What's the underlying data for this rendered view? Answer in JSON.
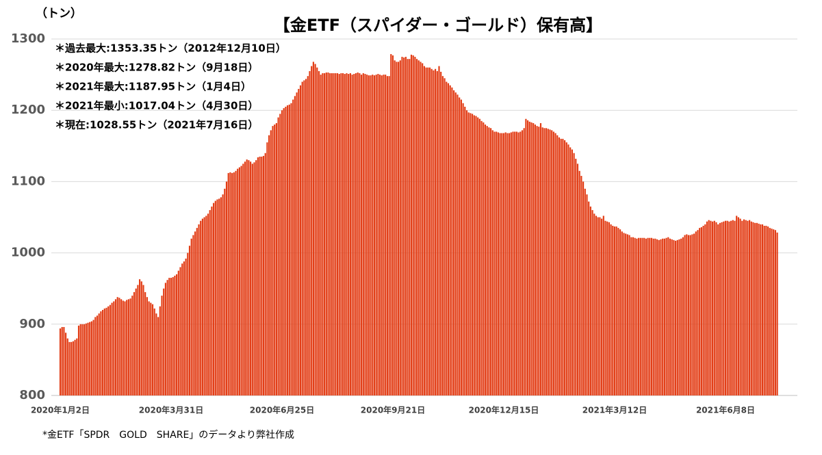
{
  "chart_data": {
    "type": "bar",
    "title": "【金ETF（スパイダー・ゴールド）保有高】",
    "unit_label": "（トン）",
    "annotations": [
      "＊過去最大:1353.35トン（2012年12月10日）",
      "＊2020年最大:1278.82トン（9月18日）",
      "＊2021年最大:1187.95トン（1月4日）",
      "＊2021年最小:1017.04トン（4月30日）",
      "＊現在:1028.55トン（2021年7月16日）"
    ],
    "footnote": "*金ETF「SPDR　GOLD　SHARE」のデータより弊社作成",
    "color": "#e23c14",
    "grid": true,
    "ylim": [
      800,
      1300
    ],
    "yticks": [
      800,
      900,
      1000,
      1100,
      1200,
      1300
    ],
    "categories": [
      "2020年1月2日",
      null,
      null,
      null,
      null,
      null,
      null,
      null,
      null,
      null,
      null,
      null,
      null,
      null,
      null,
      null,
      null,
      null,
      null,
      null,
      null,
      null,
      null,
      null,
      null,
      null,
      null,
      null,
      null,
      null,
      null,
      null,
      null,
      null,
      null,
      null,
      null,
      null,
      null,
      null,
      null,
      null,
      null,
      null,
      null,
      null,
      null,
      null,
      null,
      null,
      null,
      null,
      null,
      null,
      null,
      null,
      null,
      null,
      null,
      null,
      "2020年3月31日",
      null,
      null,
      null,
      null,
      null,
      null,
      null,
      null,
      null,
      null,
      null,
      null,
      null,
      null,
      null,
      null,
      null,
      null,
      null,
      null,
      null,
      null,
      null,
      null,
      null,
      null,
      null,
      null,
      null,
      null,
      null,
      null,
      null,
      null,
      null,
      null,
      null,
      null,
      null,
      null,
      null,
      null,
      null,
      null,
      null,
      null,
      null,
      null,
      null,
      null,
      null,
      null,
      null,
      null,
      null,
      null,
      null,
      null,
      null,
      "2020年6月25日",
      null,
      null,
      null,
      null,
      null,
      null,
      null,
      null,
      null,
      null,
      null,
      null,
      null,
      null,
      null,
      null,
      null,
      null,
      null,
      null,
      null,
      null,
      null,
      null,
      null,
      null,
      null,
      null,
      null,
      null,
      null,
      null,
      null,
      null,
      null,
      null,
      null,
      null,
      null,
      null,
      null,
      null,
      null,
      null,
      null,
      null,
      null,
      null,
      null,
      null,
      null,
      null,
      null,
      null,
      null,
      null,
      null,
      null,
      null,
      "2020年9月21日",
      null,
      null,
      null,
      null,
      null,
      null,
      null,
      null,
      null,
      null,
      null,
      null,
      null,
      null,
      null,
      null,
      null,
      null,
      null,
      null,
      null,
      null,
      null,
      null,
      null,
      null,
      null,
      null,
      null,
      null,
      null,
      null,
      null,
      null,
      null,
      null,
      null,
      null,
      null,
      null,
      null,
      null,
      null,
      null,
      null,
      null,
      null,
      null,
      null,
      null,
      null,
      null,
      null,
      null,
      null,
      null,
      null,
      null,
      null,
      "2020年12月15日",
      null,
      null,
      null,
      null,
      null,
      null,
      null,
      null,
      null,
      null,
      null,
      null,
      null,
      null,
      null,
      null,
      null,
      null,
      null,
      null,
      null,
      null,
      null,
      null,
      null,
      null,
      null,
      null,
      null,
      null,
      null,
      null,
      null,
      null,
      null,
      null,
      null,
      null,
      null,
      null,
      null,
      null,
      null,
      null,
      null,
      null,
      null,
      null,
      null,
      null,
      null,
      null,
      null,
      null,
      null,
      null,
      null,
      null,
      null,
      "2021年3月12日",
      null,
      null,
      null,
      null,
      null,
      null,
      null,
      null,
      null,
      null,
      null,
      null,
      null,
      null,
      null,
      null,
      null,
      null,
      null,
      null,
      null,
      null,
      null,
      null,
      null,
      null,
      null,
      null,
      null,
      null,
      null,
      null,
      null,
      null,
      null,
      null,
      null,
      null,
      null,
      null,
      null,
      null,
      null,
      null,
      null,
      null,
      null,
      null,
      null,
      null,
      null,
      null,
      null,
      null,
      null,
      null,
      null,
      null,
      null,
      "2021年6月8日",
      null,
      null,
      null,
      null,
      null,
      null,
      null,
      null,
      null,
      null,
      null,
      null,
      null,
      null,
      null,
      null,
      null,
      null,
      null,
      null,
      null,
      null,
      null,
      null,
      null,
      null,
      null,
      null
    ],
    "values": [
      894,
      896,
      896,
      888,
      880,
      875,
      875,
      876,
      878,
      880,
      898,
      900,
      900,
      900,
      901,
      902,
      903,
      904,
      906,
      910,
      912,
      915,
      918,
      920,
      922,
      923,
      925,
      927,
      930,
      932,
      935,
      938,
      937,
      935,
      933,
      932,
      934,
      935,
      936,
      940,
      945,
      950,
      955,
      963,
      960,
      955,
      945,
      938,
      932,
      930,
      928,
      922,
      915,
      910,
      925,
      940,
      950,
      958,
      962,
      965,
      965,
      966,
      968,
      970,
      975,
      980,
      985,
      988,
      992,
      1000,
      1010,
      1020,
      1025,
      1030,
      1035,
      1040,
      1045,
      1048,
      1050,
      1052,
      1055,
      1060,
      1065,
      1070,
      1073,
      1075,
      1076,
      1078,
      1082,
      1090,
      1100,
      1112,
      1113,
      1112,
      1113,
      1115,
      1118,
      1120,
      1122,
      1125,
      1128,
      1131,
      1130,
      1128,
      1125,
      1127,
      1130,
      1134,
      1135,
      1135,
      1136,
      1140,
      1155,
      1165,
      1172,
      1178,
      1180,
      1182,
      1190,
      1195,
      1200,
      1203,
      1205,
      1207,
      1208,
      1210,
      1215,
      1220,
      1225,
      1230,
      1235,
      1240,
      1242,
      1244,
      1248,
      1255,
      1262,
      1268,
      1265,
      1260,
      1255,
      1250,
      1252,
      1252,
      1253,
      1253,
      1252,
      1252,
      1252,
      1252,
      1252,
      1251,
      1252,
      1252,
      1251,
      1252,
      1251,
      1252,
      1250,
      1251,
      1252,
      1253,
      1252,
      1250,
      1252,
      1251,
      1250,
      1249,
      1249,
      1250,
      1249,
      1250,
      1251,
      1250,
      1249,
      1250,
      1250,
      1248,
      1248,
      1278.82,
      1277,
      1270,
      1268,
      1268,
      1270,
      1275,
      1274,
      1275,
      1272,
      1272,
      1278,
      1277,
      1275,
      1272,
      1270,
      1268,
      1266,
      1262,
      1260,
      1260,
      1260,
      1258,
      1256,
      1258,
      1255,
      1262,
      1254,
      1248,
      1245,
      1240,
      1238,
      1235,
      1232,
      1228,
      1225,
      1222,
      1218,
      1215,
      1210,
      1205,
      1200,
      1197,
      1196,
      1195,
      1193,
      1192,
      1190,
      1188,
      1185,
      1183,
      1180,
      1178,
      1176,
      1175,
      1172,
      1170,
      1170,
      1169,
      1168,
      1168,
      1168,
      1169,
      1168,
      1168,
      1169,
      1170,
      1170,
      1170,
      1169,
      1170,
      1172,
      1175,
      1187.95,
      1186,
      1184,
      1183,
      1182,
      1180,
      1178,
      1177,
      1182,
      1176,
      1175,
      1175,
      1174,
      1173,
      1172,
      1170,
      1168,
      1165,
      1162,
      1160,
      1160,
      1158,
      1155,
      1152,
      1148,
      1145,
      1140,
      1132,
      1125,
      1115,
      1108,
      1100,
      1090,
      1082,
      1072,
      1065,
      1060,
      1055,
      1052,
      1050,
      1050,
      1048,
      1052,
      1045,
      1044,
      1043,
      1040,
      1038,
      1037,
      1037,
      1035,
      1033,
      1030,
      1028,
      1027,
      1026,
      1025,
      1022,
      1022,
      1021,
      1020,
      1021,
      1021,
      1021,
      1021,
      1020,
      1021,
      1021,
      1021,
      1020,
      1020,
      1019,
      1018,
      1019,
      1020,
      1020,
      1021,
      1022,
      1020,
      1019,
      1018,
      1017.04,
      1018,
      1019,
      1020,
      1022,
      1025,
      1026,
      1025,
      1025,
      1026,
      1027,
      1030,
      1032,
      1035,
      1036,
      1038,
      1040,
      1044,
      1046,
      1045,
      1044,
      1045,
      1043,
      1040,
      1042,
      1043,
      1044,
      1045,
      1045,
      1044,
      1045,
      1046,
      1045,
      1052,
      1050,
      1048,
      1045,
      1047,
      1046,
      1045,
      1046,
      1044,
      1043,
      1042,
      1042,
      1041,
      1040,
      1040,
      1038,
      1038,
      1037,
      1035,
      1034,
      1033,
      1032,
      1028.55
    ]
  }
}
